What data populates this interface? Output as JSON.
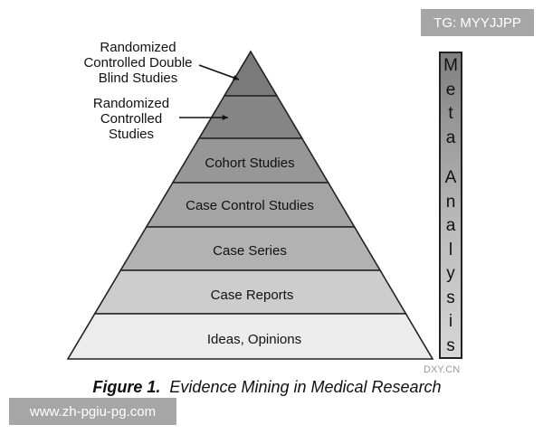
{
  "pyramid": {
    "levels": [
      {
        "label": "Randomized Controlled Double Blind Studies",
        "shade": "#7a7a7a"
      },
      {
        "label": "Randomized Controlled Studies",
        "shade": "#858585"
      },
      {
        "label": "Cohort Studies",
        "shade": "#979797"
      },
      {
        "label": "Case Control Studies",
        "shade": "#a4a4a4"
      },
      {
        "label": "Case Series",
        "shade": "#b2b2b2"
      },
      {
        "label": "Case Reports",
        "shade": "#cdcdcd"
      },
      {
        "label": "Ideas, Opinions",
        "shade": "#ececec"
      }
    ],
    "callouts": {
      "rcdb": [
        "Randomized",
        "Controlled Double",
        "Blind Studies"
      ],
      "rcs": [
        "Randomized",
        "Controlled",
        "Studies"
      ]
    }
  },
  "meta_analysis": {
    "letters": [
      "M",
      "e",
      "t",
      "a",
      "A",
      "n",
      "a",
      "l",
      "y",
      "s",
      "i",
      "s"
    ]
  },
  "caption": {
    "number": "Figure 1.",
    "text": "Evidence Mining in Medical Research"
  },
  "watermarks": {
    "top_right": "TG: MYYJJPP",
    "bottom_left": "www.zh-pgiu-pg.com",
    "source": "DXY.CN"
  }
}
